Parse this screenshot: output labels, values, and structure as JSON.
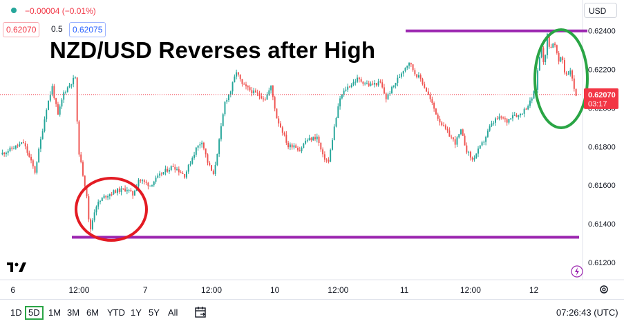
{
  "header": {
    "change": "−0.00004 (−0.01%)",
    "bid": "0.62070",
    "spread": "0.5",
    "ask": "0.62075",
    "currency": "USD"
  },
  "title": "NZD/USD Reverses after High",
  "price_tag": {
    "price": "0.62070",
    "countdown": "03:17"
  },
  "toolbar": {
    "ranges": [
      "1D",
      "5D",
      "1M",
      "3M",
      "6M",
      "YTD",
      "1Y",
      "5Y",
      "All"
    ],
    "active_range": "5D",
    "clock": "07:26:43 (UTC)"
  },
  "colors": {
    "up": "#26a69a",
    "down": "#ef5350",
    "level_line": "#9c27b0",
    "low_circle": "#e31b23",
    "high_circle": "#2aa545",
    "price_tag": "#f23645",
    "active_range_border": "#2aa545"
  },
  "chart_data": {
    "type": "candlestick",
    "symbol": "NZD/USD",
    "x_tick_labels": [
      "6",
      "12:00",
      "7",
      "12:00",
      "10",
      "12:00",
      "11",
      "12:00",
      "12"
    ],
    "y_tick_labels": [
      "0.61200",
      "0.61400",
      "0.61600",
      "0.61800",
      "0.62000",
      "0.62200",
      "0.62400"
    ],
    "ylim": [
      0.6111,
      0.6256
    ],
    "last_price": 0.6207,
    "horizontal_levels": [
      {
        "label": "resistance",
        "value": 0.624
      },
      {
        "label": "support",
        "value": 0.6133
      }
    ],
    "highlights": [
      {
        "label": "low",
        "t": 0.145,
        "price": 0.6143
      },
      {
        "label": "high",
        "t": 0.972,
        "price": 0.6223
      }
    ],
    "price_path": [
      [
        0.0,
        0.6176
      ],
      [
        0.02,
        0.6179
      ],
      [
        0.04,
        0.6182
      ],
      [
        0.06,
        0.6167
      ],
      [
        0.08,
        0.62
      ],
      [
        0.09,
        0.6211
      ],
      [
        0.1,
        0.6196
      ],
      [
        0.11,
        0.6208
      ],
      [
        0.13,
        0.6216
      ],
      [
        0.135,
        0.618
      ],
      [
        0.14,
        0.6171
      ],
      [
        0.15,
        0.6155
      ],
      [
        0.155,
        0.6135
      ],
      [
        0.165,
        0.6149
      ],
      [
        0.18,
        0.6154
      ],
      [
        0.2,
        0.6157
      ],
      [
        0.22,
        0.6158
      ],
      [
        0.23,
        0.6155
      ],
      [
        0.24,
        0.6163
      ],
      [
        0.26,
        0.616
      ],
      [
        0.28,
        0.6166
      ],
      [
        0.3,
        0.617
      ],
      [
        0.32,
        0.6165
      ],
      [
        0.34,
        0.6179
      ],
      [
        0.35,
        0.6183
      ],
      [
        0.36,
        0.6172
      ],
      [
        0.37,
        0.6165
      ],
      [
        0.38,
        0.6183
      ],
      [
        0.39,
        0.6203
      ],
      [
        0.4,
        0.6209
      ],
      [
        0.41,
        0.6219
      ],
      [
        0.42,
        0.6212
      ],
      [
        0.44,
        0.6208
      ],
      [
        0.46,
        0.6205
      ],
      [
        0.47,
        0.6211
      ],
      [
        0.48,
        0.6195
      ],
      [
        0.49,
        0.6188
      ],
      [
        0.5,
        0.618
      ],
      [
        0.51,
        0.6181
      ],
      [
        0.52,
        0.6178
      ],
      [
        0.53,
        0.6183
      ],
      [
        0.55,
        0.6185
      ],
      [
        0.56,
        0.6175
      ],
      [
        0.57,
        0.6172
      ],
      [
        0.58,
        0.619
      ],
      [
        0.59,
        0.6205
      ],
      [
        0.6,
        0.621
      ],
      [
        0.62,
        0.6215
      ],
      [
        0.64,
        0.6212
      ],
      [
        0.66,
        0.6213
      ],
      [
        0.67,
        0.6205
      ],
      [
        0.68,
        0.621
      ],
      [
        0.7,
        0.622
      ],
      [
        0.71,
        0.6224
      ],
      [
        0.72,
        0.6218
      ],
      [
        0.73,
        0.6215
      ],
      [
        0.74,
        0.6209
      ],
      [
        0.75,
        0.6202
      ],
      [
        0.76,
        0.6195
      ],
      [
        0.77,
        0.619
      ],
      [
        0.78,
        0.6186
      ],
      [
        0.79,
        0.6182
      ],
      [
        0.8,
        0.6188
      ],
      [
        0.81,
        0.6178
      ],
      [
        0.82,
        0.6173
      ],
      [
        0.83,
        0.6178
      ],
      [
        0.84,
        0.6183
      ],
      [
        0.85,
        0.619
      ],
      [
        0.86,
        0.6194
      ],
      [
        0.87,
        0.6195
      ],
      [
        0.88,
        0.6193
      ],
      [
        0.89,
        0.6197
      ],
      [
        0.9,
        0.6196
      ],
      [
        0.91,
        0.6199
      ],
      [
        0.92,
        0.6203
      ],
      [
        0.93,
        0.621
      ],
      [
        0.935,
        0.6224
      ],
      [
        0.94,
        0.6232
      ],
      [
        0.945,
        0.6221
      ],
      [
        0.95,
        0.6238
      ],
      [
        0.955,
        0.623
      ],
      [
        0.96,
        0.6234
      ],
      [
        0.965,
        0.6231
      ],
      [
        0.97,
        0.6223
      ],
      [
        0.975,
        0.6228
      ],
      [
        0.98,
        0.6219
      ],
      [
        0.985,
        0.6217
      ],
      [
        0.99,
        0.622
      ],
      [
        0.995,
        0.6212
      ],
      [
        1.0,
        0.6207
      ]
    ]
  }
}
